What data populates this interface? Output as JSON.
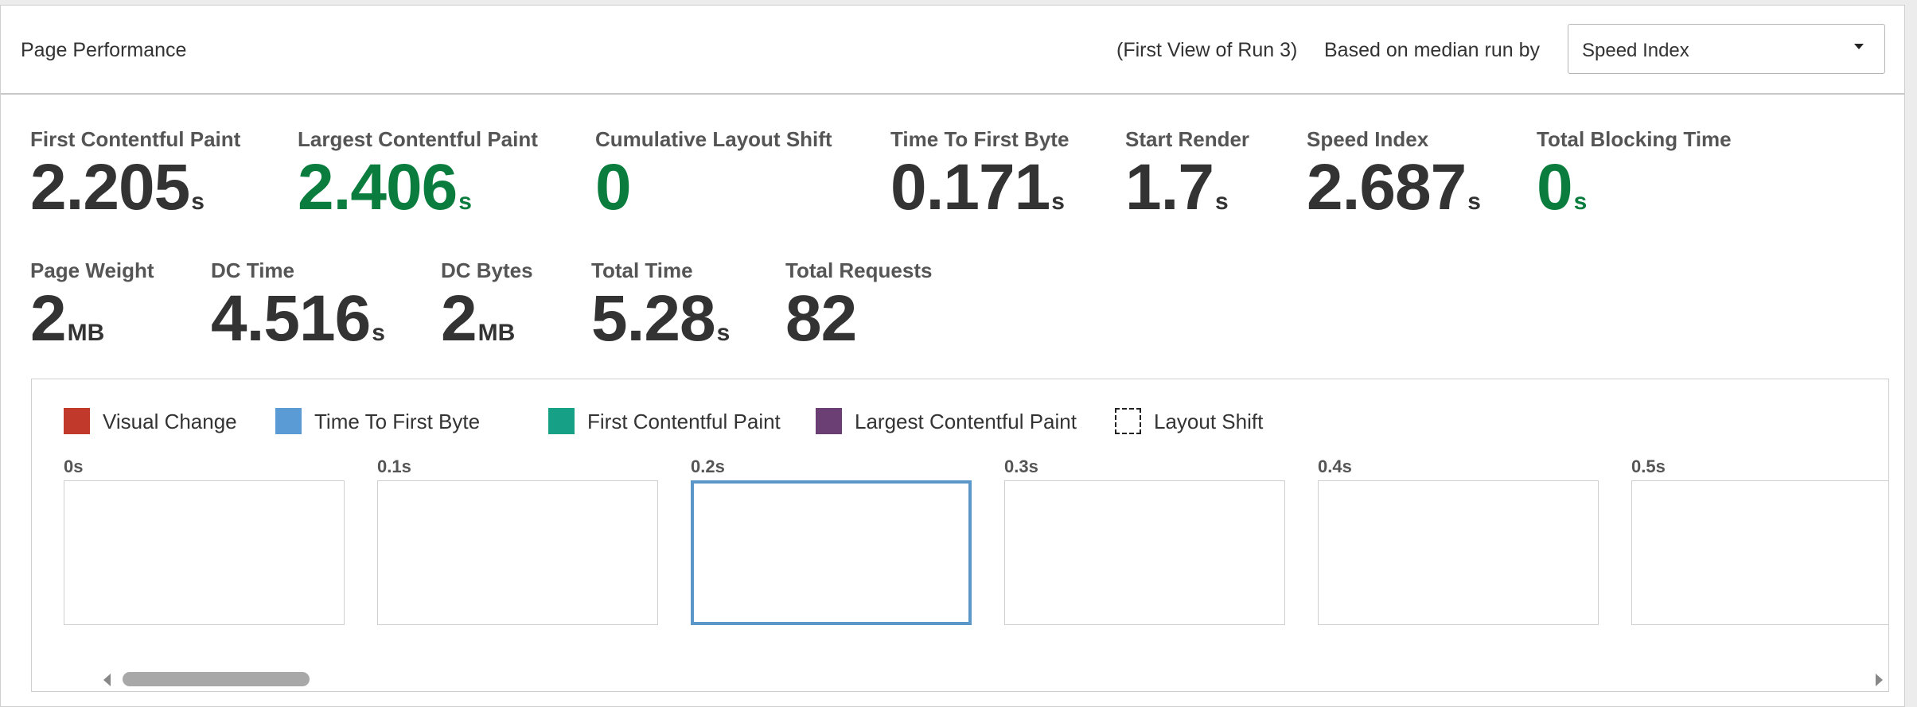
{
  "header": {
    "title": "Page Performance",
    "run_info": "(First View of Run 3)",
    "based_on_label": "Based on median run by",
    "select_value": "Speed Index"
  },
  "metrics_row1": [
    {
      "label": "First Contentful Paint",
      "value": "2.205",
      "unit": "s",
      "status": "neutral"
    },
    {
      "label": "Largest Contentful Paint",
      "value": "2.406",
      "unit": "s",
      "status": "good"
    },
    {
      "label": "Cumulative Layout Shift",
      "value": "0",
      "unit": "",
      "status": "good"
    },
    {
      "label": "Time To First Byte",
      "value": "0.171",
      "unit": "s",
      "status": "neutral"
    },
    {
      "label": "Start Render",
      "value": "1.7",
      "unit": "s",
      "status": "neutral"
    },
    {
      "label": "Speed Index",
      "value": "2.687",
      "unit": "s",
      "status": "neutral"
    },
    {
      "label": "Total Blocking Time",
      "value": "0",
      "unit": "s",
      "status": "good"
    }
  ],
  "metrics_row2": [
    {
      "label": "Page Weight",
      "value": "2",
      "unit": "MB"
    },
    {
      "label": "DC Time",
      "value": "4.516",
      "unit": "s"
    },
    {
      "label": "DC Bytes",
      "value": "2",
      "unit": "MB"
    },
    {
      "label": "Total Time",
      "value": "5.28",
      "unit": "s"
    },
    {
      "label": "Total Requests",
      "value": "82",
      "unit": ""
    }
  ],
  "legend": [
    {
      "label": "Visual Change",
      "color": "#c0392b"
    },
    {
      "label": "Time To First Byte",
      "color": "#5b9bd5"
    },
    {
      "label": "First Contentful Paint",
      "color": "#16a085"
    },
    {
      "label": "Largest Contentful Paint",
      "color": "#6c3f74"
    },
    {
      "label": "Layout Shift",
      "color": "dashed"
    }
  ],
  "frames": [
    {
      "time": "0s",
      "selected": false
    },
    {
      "time": "0.1s",
      "selected": false
    },
    {
      "time": "0.2s",
      "selected": true
    },
    {
      "time": "0.3s",
      "selected": false
    },
    {
      "time": "0.4s",
      "selected": false
    },
    {
      "time": "0.5s",
      "selected": false
    }
  ],
  "colors": {
    "good": "#0a7d3e",
    "selected_frame_border": "#5b97c8"
  }
}
